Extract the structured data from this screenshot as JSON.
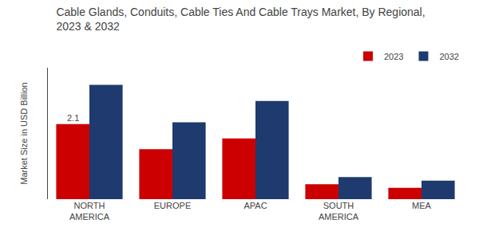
{
  "chart_data": {
    "type": "bar",
    "title": "Cable Glands, Conduits, Cable Ties And Cable Trays Market, By Regional,\n2023 & 2032",
    "ylabel": "Market Size in USD Billion",
    "categories": [
      "NORTH\nAMERICA",
      "EUROPE",
      "APAC",
      "SOUTH\nAMERICA",
      "MEA"
    ],
    "series": [
      {
        "name": "2023",
        "color": "#cc0000",
        "values": [
          2.1,
          1.4,
          1.7,
          0.42,
          0.32
        ]
      },
      {
        "name": "2032",
        "color": "#1e3a6e",
        "values": [
          3.2,
          2.15,
          2.75,
          0.62,
          0.52
        ]
      }
    ],
    "ylim": [
      0,
      3.68
    ],
    "yticks": [],
    "tick_labels": "x",
    "grid": false,
    "legend": "upper right",
    "annotations": [
      {
        "text": "2.1",
        "x": "NORTH\nAMERICA",
        "series": "2023",
        "y": 2.1
      }
    ]
  }
}
